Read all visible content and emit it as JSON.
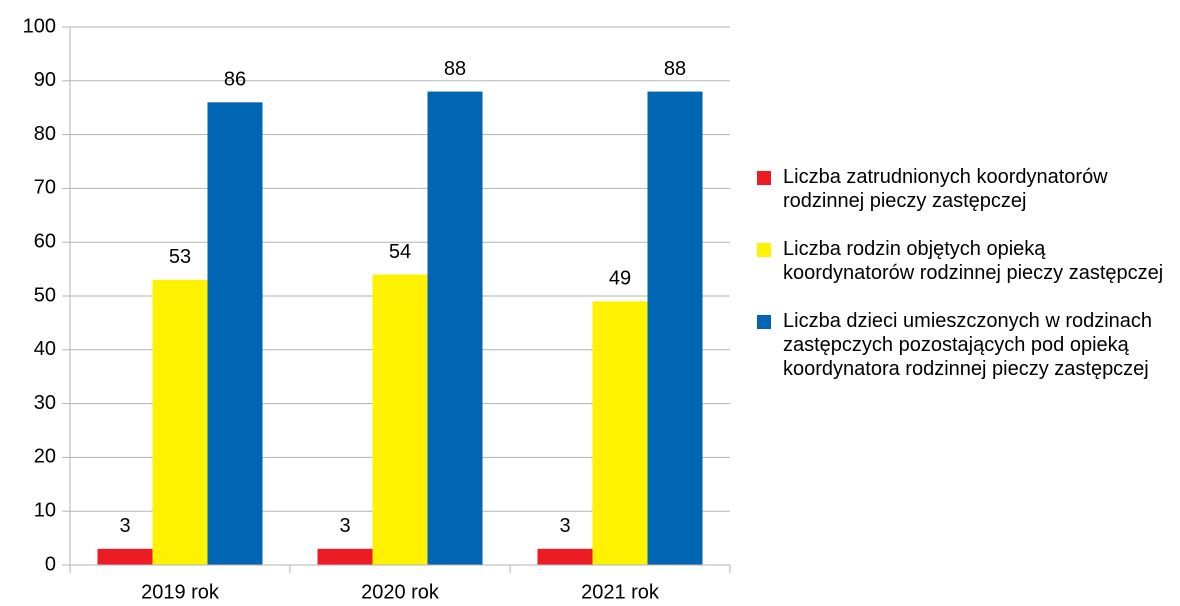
{
  "chart_data": {
    "type": "bar",
    "categories": [
      "2019 rok",
      "2020 rok",
      "2021 rok"
    ],
    "series": [
      {
        "name": "Liczba zatrudnionych koordynatorów rodzinnej pieczy zastępczej",
        "color": "#ed1c24",
        "values": [
          3,
          3,
          3
        ]
      },
      {
        "name": "Liczba rodzin objętych opieką koordynatorów rodzinnej pieczy zastępczej",
        "color": "#fff200",
        "values": [
          53,
          54,
          49
        ]
      },
      {
        "name": "Liczba dzieci umieszczonych w rodzinach zastępczych pozostających pod opieką koordynatora rodzinnej pieczy zastępczej",
        "color": "#0066b3",
        "values": [
          86,
          88,
          88
        ]
      }
    ],
    "ylim": [
      0,
      100
    ],
    "yticks": [
      0,
      10,
      20,
      30,
      40,
      50,
      60,
      70,
      80,
      90,
      100
    ],
    "grid": true,
    "legend": "right"
  }
}
